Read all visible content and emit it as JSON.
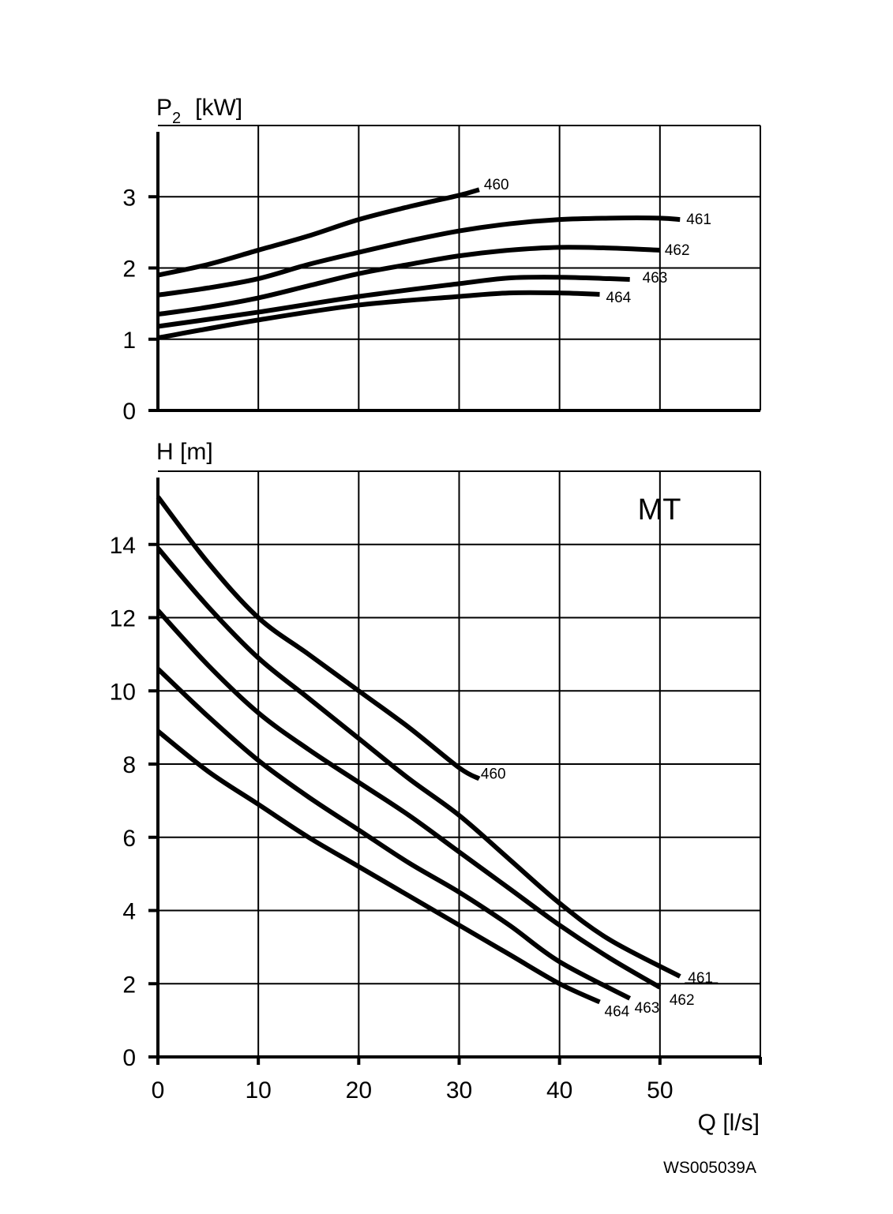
{
  "chart_data": [
    {
      "type": "line",
      "title": "",
      "ylabel": "P",
      "ylabel_sub": "2",
      "ylabel_unit": "[kW]",
      "xlim": [
        0,
        60
      ],
      "ylim": [
        0,
        4
      ],
      "yticks": [
        "0",
        "1",
        "2",
        "3"
      ],
      "grid": true,
      "series": [
        {
          "name": "460",
          "x": [
            0,
            5,
            10,
            15,
            20,
            25,
            30,
            32
          ],
          "y": [
            1.9,
            2.05,
            2.25,
            2.45,
            2.68,
            2.86,
            3.02,
            3.1
          ]
        },
        {
          "name": "461",
          "x": [
            0,
            5,
            10,
            15,
            20,
            25,
            30,
            35,
            40,
            45,
            50,
            52
          ],
          "y": [
            1.62,
            1.72,
            1.85,
            2.05,
            2.22,
            2.38,
            2.52,
            2.62,
            2.68,
            2.7,
            2.7,
            2.68
          ]
        },
        {
          "name": "462",
          "x": [
            0,
            5,
            10,
            15,
            20,
            25,
            30,
            35,
            40,
            45,
            50
          ],
          "y": [
            1.35,
            1.45,
            1.58,
            1.75,
            1.92,
            2.05,
            2.17,
            2.25,
            2.29,
            2.28,
            2.25
          ]
        },
        {
          "name": "463",
          "x": [
            0,
            10,
            20,
            30,
            35,
            40,
            45,
            47
          ],
          "y": [
            1.18,
            1.38,
            1.6,
            1.78,
            1.86,
            1.87,
            1.85,
            1.84
          ]
        },
        {
          "name": "464",
          "x": [
            0,
            10,
            20,
            30,
            35,
            40,
            44
          ],
          "y": [
            1.02,
            1.27,
            1.48,
            1.6,
            1.65,
            1.65,
            1.63
          ]
        }
      ]
    },
    {
      "type": "line",
      "title": "",
      "annotation": "MT",
      "ylabel": "H [m]",
      "xlabel": "Q [l/s]",
      "xlim": [
        0,
        60
      ],
      "ylim": [
        0,
        16
      ],
      "xticks": [
        "0",
        "10",
        "20",
        "30",
        "40",
        "50"
      ],
      "yticks": [
        "0",
        "2",
        "4",
        "6",
        "8",
        "10",
        "12",
        "14"
      ],
      "grid": true,
      "series": [
        {
          "name": "460",
          "x": [
            0,
            5,
            10,
            15,
            20,
            25,
            30,
            32
          ],
          "y": [
            15.3,
            13.5,
            12.0,
            11.0,
            10.0,
            9.0,
            7.9,
            7.6
          ]
        },
        {
          "name": "461",
          "x": [
            0,
            5,
            10,
            15,
            20,
            25,
            30,
            35,
            40,
            45,
            52
          ],
          "y": [
            13.9,
            12.3,
            10.9,
            9.8,
            8.7,
            7.6,
            6.6,
            5.4,
            4.2,
            3.2,
            2.2
          ]
        },
        {
          "name": "462",
          "x": [
            0,
            5,
            10,
            15,
            20,
            25,
            30,
            35,
            40,
            45,
            50
          ],
          "y": [
            12.2,
            10.7,
            9.4,
            8.4,
            7.5,
            6.6,
            5.6,
            4.6,
            3.6,
            2.7,
            1.9
          ]
        },
        {
          "name": "463",
          "x": [
            0,
            5,
            10,
            15,
            20,
            25,
            30,
            35,
            40,
            47
          ],
          "y": [
            10.6,
            9.3,
            8.1,
            7.1,
            6.2,
            5.3,
            4.5,
            3.6,
            2.6,
            1.6
          ]
        },
        {
          "name": "464",
          "x": [
            0,
            5,
            10,
            15,
            20,
            25,
            30,
            35,
            40,
            44
          ],
          "y": [
            8.9,
            7.8,
            6.9,
            6.0,
            5.2,
            4.4,
            3.6,
            2.8,
            2.0,
            1.5
          ]
        }
      ]
    }
  ],
  "figure_code": "WS005039A"
}
